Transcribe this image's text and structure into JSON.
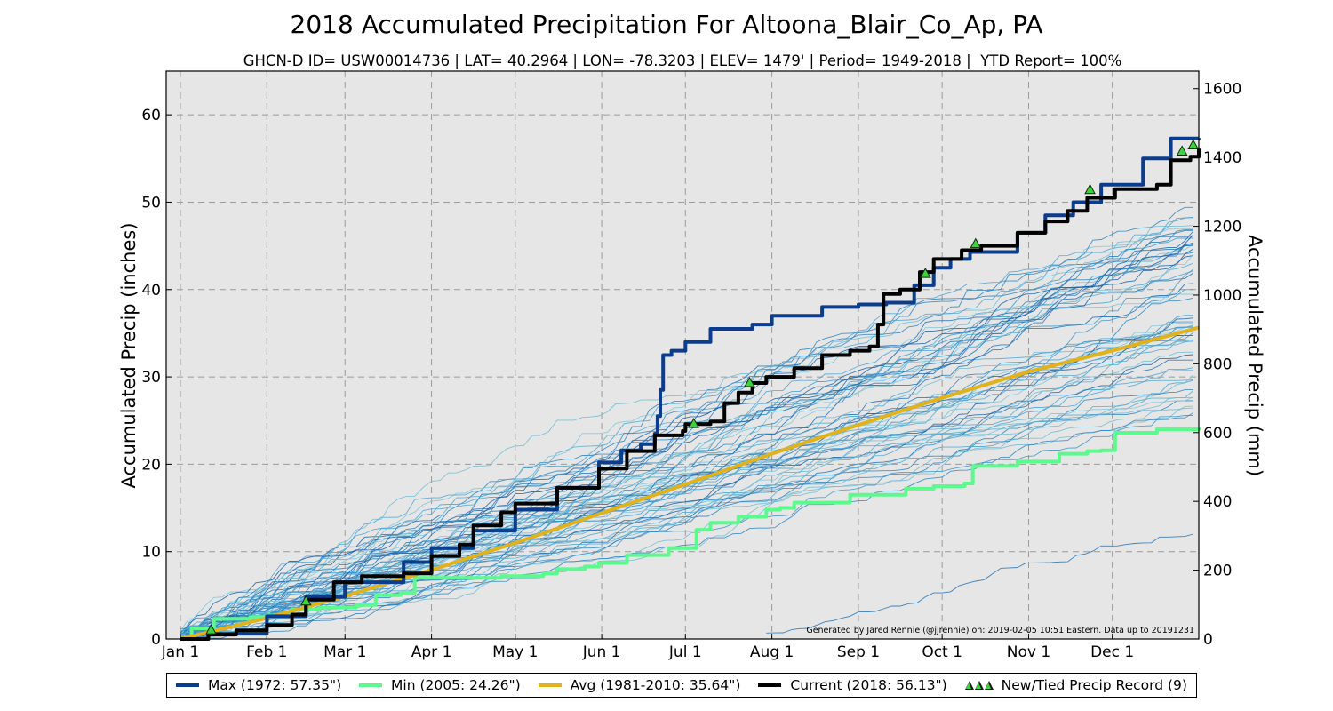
{
  "chart_data": {
    "type": "line",
    "title": "2018 Accumulated Precipitation For Altoona_Blair_Co_Ap, PA",
    "subtitle": "GHCN-D ID= USW00014736 | LAT= 40.2964 | LON= -78.3203 | ELEV= 1479' | Period= 1949-2018 |  YTD Report= 100%",
    "ylabel": "Accumulated Precip (inches)",
    "y2label": "Accumulated Precip (mm)",
    "ylim": [
      0,
      65
    ],
    "y2lim": [
      0,
      1651
    ],
    "yticks": [
      0,
      10,
      20,
      30,
      40,
      50,
      60
    ],
    "y2ticks": [
      0,
      200,
      400,
      600,
      800,
      1000,
      1200,
      1400,
      1600
    ],
    "xlim": [
      0,
      365
    ],
    "xticks": [
      {
        "day": 0,
        "label": "Jan 1"
      },
      {
        "day": 31,
        "label": "Feb 1"
      },
      {
        "day": 59,
        "label": "Mar 1"
      },
      {
        "day": 90,
        "label": "Apr 1"
      },
      {
        "day": 120,
        "label": "May 1"
      },
      {
        "day": 151,
        "label": "Jun 1"
      },
      {
        "day": 181,
        "label": "Jul 1"
      },
      {
        "day": 212,
        "label": "Aug 1"
      },
      {
        "day": 243,
        "label": "Sep 1"
      },
      {
        "day": 273,
        "label": "Oct 1"
      },
      {
        "day": 304,
        "label": "Nov 1"
      },
      {
        "day": 334,
        "label": "Dec 1"
      }
    ],
    "grid": true,
    "legend_position": "bottom",
    "annotation": "Generated by Jared Rennie (@jjrennie) on: 2019-02-05 10:51 Eastern. Data up to 20191231",
    "series": [
      {
        "name": "Max (1972:  57.35\")",
        "color": "#0b3d8c",
        "points": [
          [
            0,
            0
          ],
          [
            10,
            0.6
          ],
          [
            31,
            2.6
          ],
          [
            45,
            4.8
          ],
          [
            59,
            6.5
          ],
          [
            80,
            8.8
          ],
          [
            90,
            10.4
          ],
          [
            105,
            12.4
          ],
          [
            120,
            14.8
          ],
          [
            135,
            17.3
          ],
          [
            150,
            20.2
          ],
          [
            158,
            21.6
          ],
          [
            165,
            22.3
          ],
          [
            170,
            23.5
          ],
          [
            171,
            25.5
          ],
          [
            172,
            28.5
          ],
          [
            173,
            32.5
          ],
          [
            176,
            33
          ],
          [
            181,
            34
          ],
          [
            190,
            35.5
          ],
          [
            205,
            36
          ],
          [
            212,
            37
          ],
          [
            230,
            38
          ],
          [
            243,
            38.3
          ],
          [
            253,
            38.5
          ],
          [
            263,
            40.5
          ],
          [
            270,
            42.5
          ],
          [
            276,
            43.5
          ],
          [
            283,
            44.3
          ],
          [
            300,
            46.5
          ],
          [
            310,
            48.5
          ],
          [
            320,
            50
          ],
          [
            330,
            52
          ],
          [
            345,
            55
          ],
          [
            355,
            57.3
          ],
          [
            365,
            57.35
          ]
        ]
      },
      {
        "name": "Min (2005:  24.26\")",
        "color": "#5cfa8c",
        "points": [
          [
            0,
            0
          ],
          [
            4,
            1.2
          ],
          [
            12,
            2.3
          ],
          [
            25,
            2.5
          ],
          [
            31,
            2.7
          ],
          [
            40,
            3.4
          ],
          [
            50,
            3.6
          ],
          [
            63,
            3.9
          ],
          [
            70,
            5.0
          ],
          [
            79,
            5.3
          ],
          [
            84,
            7.0
          ],
          [
            100,
            7.0
          ],
          [
            110,
            7.0
          ],
          [
            115,
            7.2
          ],
          [
            130,
            7.5
          ],
          [
            135,
            8.0
          ],
          [
            145,
            8.3
          ],
          [
            150,
            8.7
          ],
          [
            160,
            9.6
          ],
          [
            170,
            9.6
          ],
          [
            175,
            10.4
          ],
          [
            185,
            12.5
          ],
          [
            190,
            13.3
          ],
          [
            200,
            14.0
          ],
          [
            210,
            14.8
          ],
          [
            215,
            15.0
          ],
          [
            220,
            15.6
          ],
          [
            240,
            16.5
          ],
          [
            260,
            17.2
          ],
          [
            270,
            17.5
          ],
          [
            281,
            17.8
          ],
          [
            284,
            19.8
          ],
          [
            300,
            20.3
          ],
          [
            315,
            21.2
          ],
          [
            325,
            21.5
          ],
          [
            330,
            21.6
          ],
          [
            335,
            23.6
          ],
          [
            350,
            24.0
          ],
          [
            365,
            24.26
          ]
        ]
      },
      {
        "name": "Avg (1981-2010:  35.64\")",
        "color": "#e0b21c",
        "points": [
          [
            0,
            0
          ],
          [
            31,
            2.4
          ],
          [
            59,
            4.9
          ],
          [
            90,
            7.9
          ],
          [
            120,
            11.0
          ],
          [
            151,
            14.4
          ],
          [
            181,
            17.7
          ],
          [
            212,
            21.2
          ],
          [
            243,
            24.5
          ],
          [
            273,
            27.6
          ],
          [
            304,
            30.6
          ],
          [
            334,
            33.0
          ],
          [
            365,
            35.64
          ]
        ]
      },
      {
        "name": "Current (2018:  56.13\")",
        "color": "#000000",
        "points": [
          [
            0,
            0
          ],
          [
            10,
            0.5
          ],
          [
            20,
            1.0
          ],
          [
            31,
            1.6
          ],
          [
            40,
            2.8
          ],
          [
            45,
            4.5
          ],
          [
            55,
            6.5
          ],
          [
            65,
            7.2
          ],
          [
            80,
            7.5
          ],
          [
            90,
            9.5
          ],
          [
            100,
            10.8
          ],
          [
            105,
            13.0
          ],
          [
            115,
            14.5
          ],
          [
            120,
            15.5
          ],
          [
            135,
            17.3
          ],
          [
            150,
            19.5
          ],
          [
            160,
            21.5
          ],
          [
            170,
            23.3
          ],
          [
            180,
            23.8
          ],
          [
            181,
            24.6
          ],
          [
            190,
            24.9
          ],
          [
            195,
            27.0
          ],
          [
            200,
            28.2
          ],
          [
            205,
            29.3
          ],
          [
            210,
            30.0
          ],
          [
            220,
            31.0
          ],
          [
            230,
            32.5
          ],
          [
            240,
            33.0
          ],
          [
            247,
            33.5
          ],
          [
            250,
            36.0
          ],
          [
            252,
            39.5
          ],
          [
            258,
            40.0
          ],
          [
            265,
            42.0
          ],
          [
            270,
            43.5
          ],
          [
            280,
            44.5
          ],
          [
            287,
            45.0
          ],
          [
            300,
            46.5
          ],
          [
            310,
            47.8
          ],
          [
            318,
            49.0
          ],
          [
            325,
            50.5
          ],
          [
            335,
            51.5
          ],
          [
            350,
            52.0
          ],
          [
            355,
            54.8
          ],
          [
            362,
            55.2
          ],
          [
            365,
            56.13
          ]
        ]
      }
    ],
    "records": {
      "name": "New/Tied Precip Record (9)",
      "points": [
        [
          11,
          1.0
        ],
        [
          45,
          4.3
        ],
        [
          184,
          24.6
        ],
        [
          204,
          29.3
        ],
        [
          267,
          41.8
        ],
        [
          285,
          45.2
        ],
        [
          326,
          51.4
        ],
        [
          359,
          55.8
        ],
        [
          363,
          56.5
        ]
      ]
    }
  }
}
